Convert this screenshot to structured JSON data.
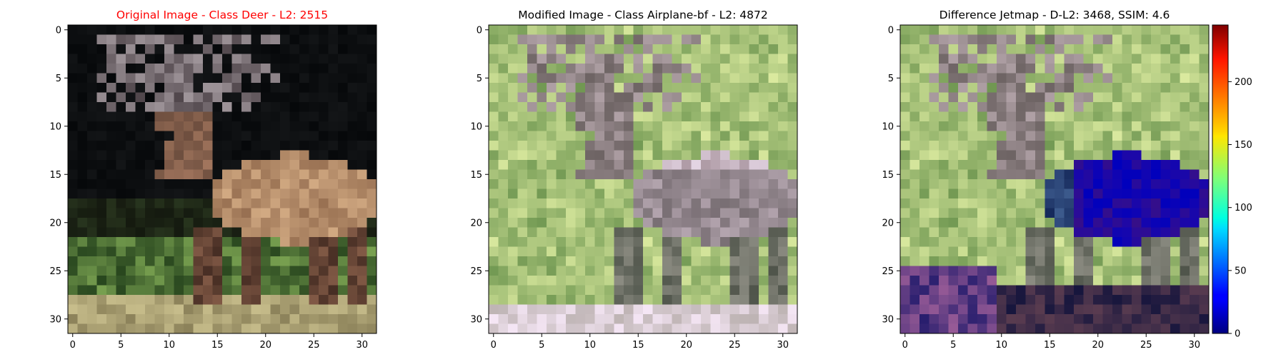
{
  "chart_data": [
    {
      "type": "image",
      "title": "Original Image - Class Deer - L2: 2515",
      "title_color": "#ff0000",
      "x_ticks": [
        "0",
        "5",
        "10",
        "15",
        "20",
        "25",
        "30"
      ],
      "y_ticks": [
        "0",
        "5",
        "10",
        "15",
        "20",
        "25",
        "30"
      ],
      "xlim": [
        -0.5,
        31.5
      ],
      "ylim": [
        31.5,
        -0.5
      ],
      "content": "deer-original"
    },
    {
      "type": "image",
      "title": "Modified Image - Class Airplane-bf - L2: 4872",
      "title_color": "#000000",
      "x_ticks": [
        "0",
        "5",
        "10",
        "15",
        "20",
        "25",
        "30"
      ],
      "y_ticks": [
        "0",
        "5",
        "10",
        "15",
        "20",
        "25",
        "30"
      ],
      "xlim": [
        -0.5,
        31.5
      ],
      "ylim": [
        31.5,
        -0.5
      ],
      "content": "deer-modified"
    },
    {
      "type": "heatmap",
      "title": "Difference Jetmap - D-L2: 3468, SSIM: 4.6",
      "title_color": "#000000",
      "x_ticks": [
        "0",
        "5",
        "10",
        "15",
        "20",
        "25",
        "30"
      ],
      "y_ticks": [
        "0",
        "5",
        "10",
        "15",
        "20",
        "25",
        "30"
      ],
      "xlim": [
        -0.5,
        31.5
      ],
      "ylim": [
        31.5,
        -0.5
      ],
      "content": "difference-jetmap",
      "colorbar": {
        "colormap": "jet",
        "range": [
          0,
          245
        ],
        "ticks": [
          0,
          50,
          100,
          150,
          200
        ],
        "tick_labels": [
          "0",
          "50",
          "100",
          "150",
          "200"
        ]
      }
    }
  ]
}
